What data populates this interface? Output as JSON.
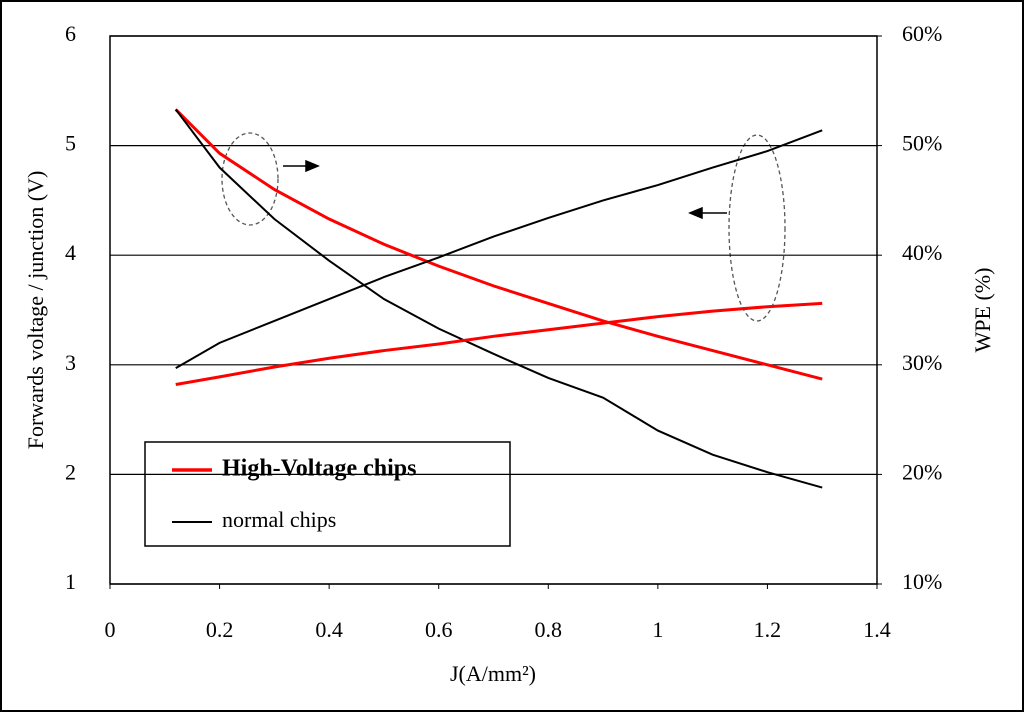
{
  "chart_data": {
    "type": "line",
    "x_label": "J(A/mm²)",
    "y_label": "Forwards voltage / junction (V)",
    "y2_label": "WPE (%)",
    "x": [
      0.12,
      0.2,
      0.3,
      0.4,
      0.5,
      0.6,
      0.7,
      0.8,
      0.9,
      1.0,
      1.1,
      1.2,
      1.3
    ],
    "series": [
      {
        "name": "High-Voltage chips",
        "color": "#ff0000",
        "values": [
          5.33,
          4.93,
          4.6,
          4.33,
          4.1,
          3.9,
          3.72,
          3.56,
          3.4,
          3.26,
          3.13,
          3.0,
          2.87
        ]
      },
      {
        "name": "normal chips",
        "color": "#000000",
        "values": [
          5.33,
          4.8,
          4.33,
          3.95,
          3.6,
          3.33,
          3.1,
          2.88,
          2.7,
          2.4,
          2.18,
          2.02,
          1.88
        ]
      },
      {
        "color": "#ff0000",
        "axis": "y2",
        "values": [
          28.2,
          28.9,
          29.8,
          30.6,
          31.3,
          31.9,
          32.6,
          33.2,
          33.8,
          34.4,
          34.9,
          35.3,
          35.6
        ]
      },
      {
        "color": "#000000",
        "axis": "y2",
        "values": [
          29.7,
          32.0,
          34.0,
          36.0,
          38.0,
          39.8,
          41.7,
          43.4,
          45.0,
          46.4,
          48.0,
          49.5,
          51.4
        ]
      }
    ],
    "xlim": [
      0,
      1.4
    ],
    "xticks": [
      0,
      0.2,
      0.4,
      0.6,
      0.8,
      1,
      1.2,
      1.4
    ],
    "ylim": [
      1,
      6
    ],
    "yticks": [
      1,
      2,
      3,
      4,
      5,
      6
    ],
    "y2lim": [
      10,
      60
    ],
    "y2ticks": [
      {
        "value": 10,
        "label": "10%"
      },
      {
        "value": 20,
        "label": "20%"
      },
      {
        "value": 30,
        "label": "30%"
      },
      {
        "value": 40,
        "label": "40%"
      },
      {
        "value": 50,
        "label": "50%"
      },
      {
        "value": 60,
        "label": "60%"
      }
    ],
    "grid": true
  }
}
